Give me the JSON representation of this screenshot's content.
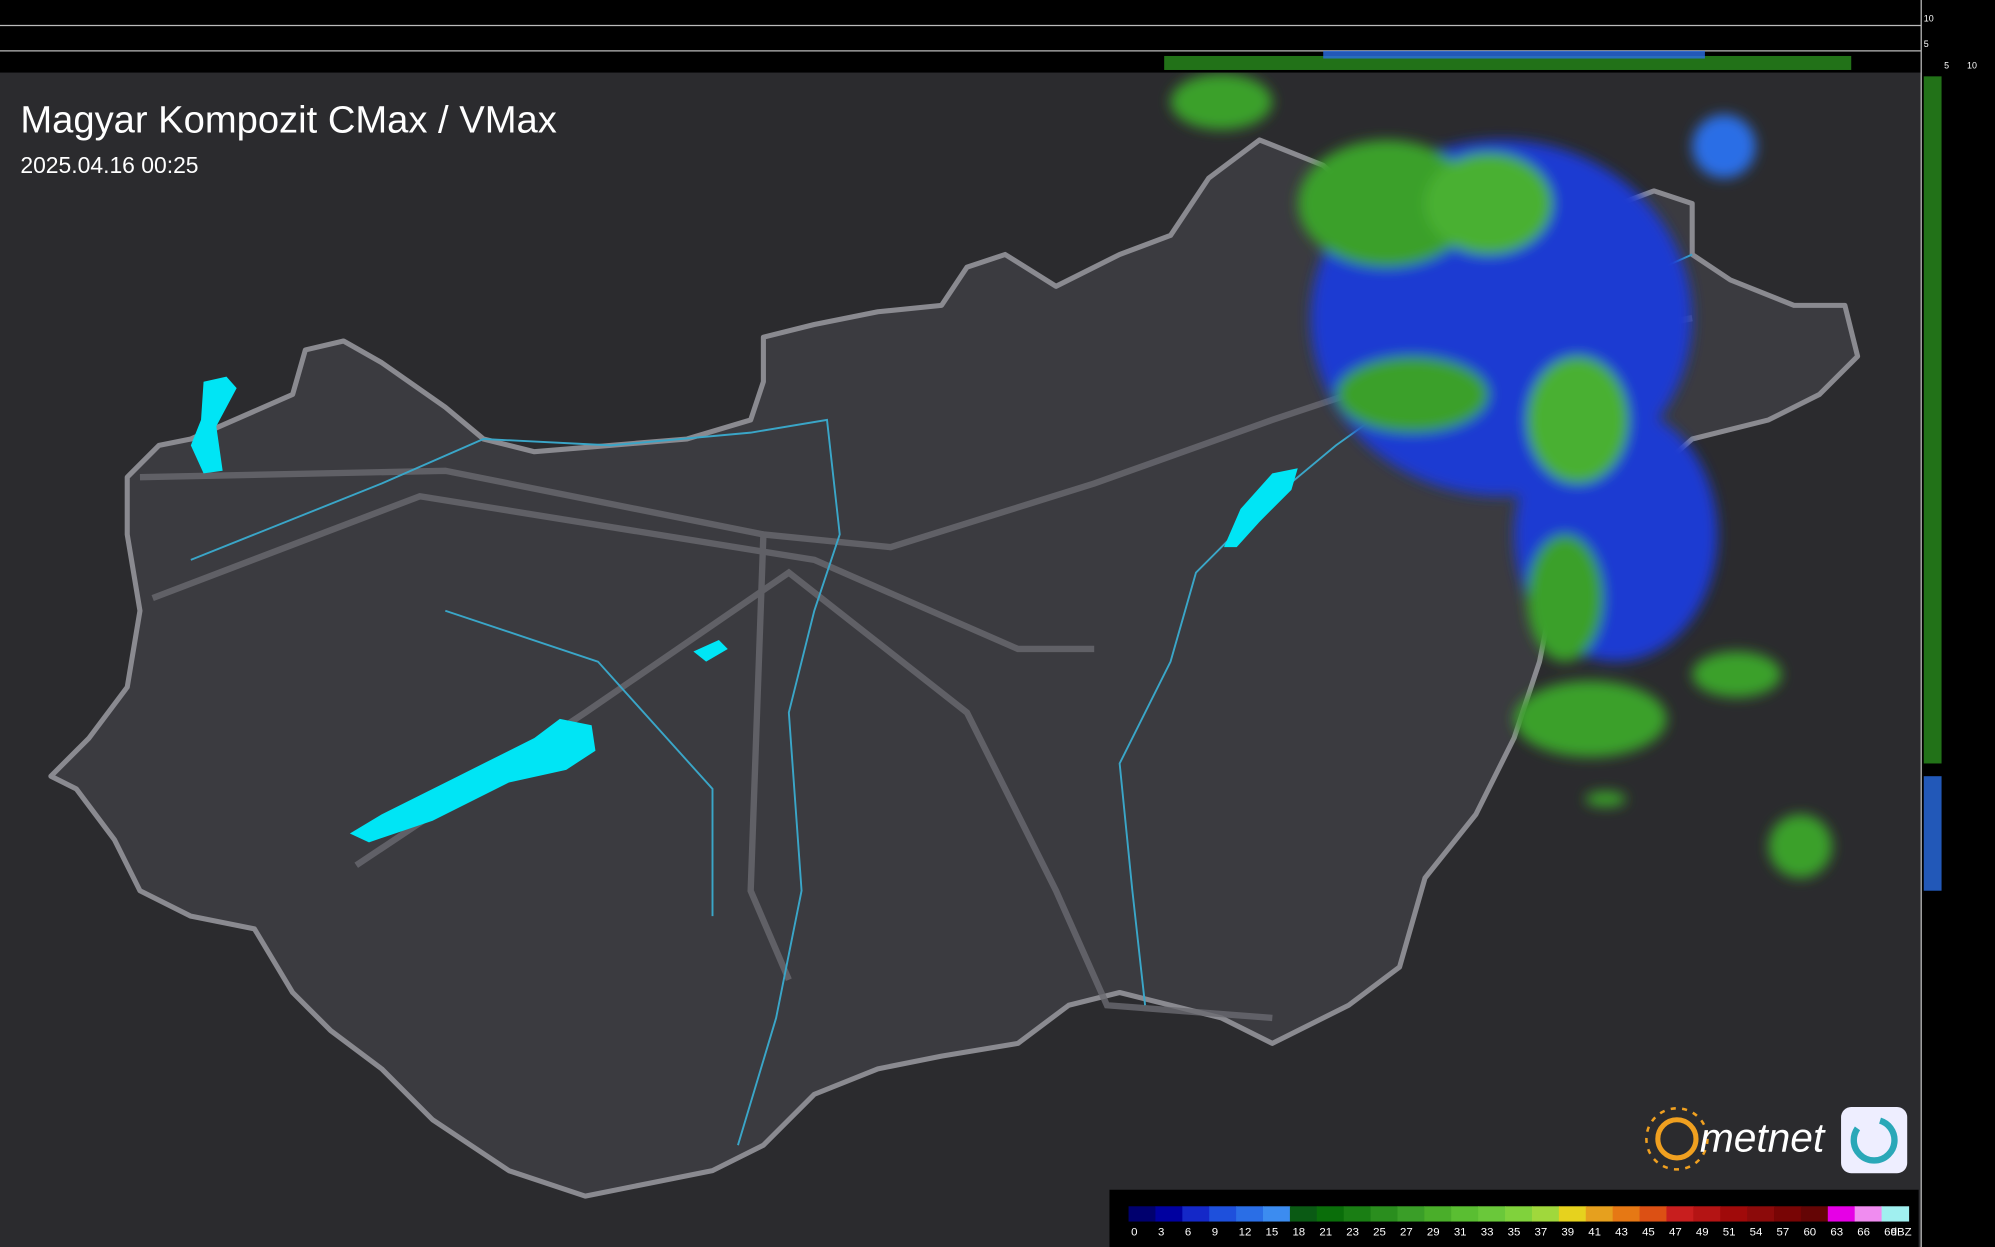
{
  "header": {
    "title": "Magyar Kompozit CMax / VMax",
    "timestamp": "2025.04.16 00:25"
  },
  "profile_top": {
    "ticks": [
      10,
      5
    ]
  },
  "profile_side": {
    "ticks": [
      5,
      10
    ]
  },
  "logo": {
    "text": "metnet"
  },
  "legend": {
    "unit": "dBZ",
    "steps": [
      {
        "value": 0,
        "color": "#00006e"
      },
      {
        "value": 3,
        "color": "#0000a0"
      },
      {
        "value": 6,
        "color": "#1428c8"
      },
      {
        "value": 9,
        "color": "#1e50dc"
      },
      {
        "value": 12,
        "color": "#2a6ee6"
      },
      {
        "value": 15,
        "color": "#3c8cf0"
      },
      {
        "value": 18,
        "color": "#0a5a14"
      },
      {
        "value": 21,
        "color": "#0a6e0a"
      },
      {
        "value": 23,
        "color": "#1a7e14"
      },
      {
        "value": 25,
        "color": "#2a8e1e"
      },
      {
        "value": 27,
        "color": "#3a9e28"
      },
      {
        "value": 29,
        "color": "#4aae2a"
      },
      {
        "value": 31,
        "color": "#5abe32"
      },
      {
        "value": 33,
        "color": "#6ac83a"
      },
      {
        "value": 35,
        "color": "#80d23c"
      },
      {
        "value": 37,
        "color": "#a0d83c"
      },
      {
        "value": 39,
        "color": "#e6d21e"
      },
      {
        "value": 41,
        "color": "#e6a01e"
      },
      {
        "value": 43,
        "color": "#e67814"
      },
      {
        "value": 45,
        "color": "#dc5014"
      },
      {
        "value": 47,
        "color": "#c81e1e"
      },
      {
        "value": 49,
        "color": "#b41414"
      },
      {
        "value": 51,
        "color": "#a00a0a"
      },
      {
        "value": 54,
        "color": "#8c0a0a"
      },
      {
        "value": 57,
        "color": "#780505"
      },
      {
        "value": 60,
        "color": "#640505"
      },
      {
        "value": 63,
        "color": "#e600e6"
      },
      {
        "value": 66,
        "color": "#f08cf0"
      },
      {
        "value": 69,
        "color": "#a0f0f0"
      }
    ]
  }
}
